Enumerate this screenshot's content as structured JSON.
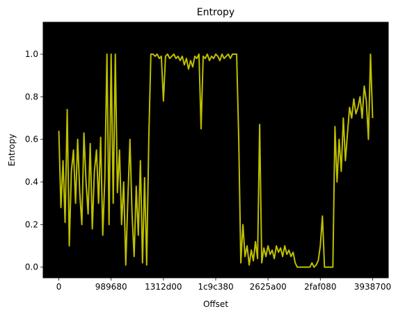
{
  "chart_data": {
    "type": "line",
    "title": "Entropy",
    "xlabel": "Offset",
    "ylabel": "Entropy",
    "background": "#000000",
    "xlim": [
      -3000000,
      63000000
    ],
    "ylim": [
      -0.05,
      1.15
    ],
    "xticks": [
      {
        "value": 0,
        "label": "0"
      },
      {
        "value": 10000000,
        "label": "989680"
      },
      {
        "value": 20000000,
        "label": "1312d00"
      },
      {
        "value": 30000000,
        "label": "1c9c380"
      },
      {
        "value": 40000000,
        "label": "2625a00"
      },
      {
        "value": 50000000,
        "label": "2faf080"
      },
      {
        "value": 60000000,
        "label": "3938700"
      }
    ],
    "yticks": [
      {
        "value": 0,
        "label": "0.0"
      },
      {
        "value": 0.2,
        "label": "0.2"
      },
      {
        "value": 0.4,
        "label": "0.4"
      },
      {
        "value": 0.6,
        "label": "0.6"
      },
      {
        "value": 0.8,
        "label": "0.8"
      },
      {
        "value": 1,
        "label": "1.0"
      }
    ],
    "x": [
      0,
      400000,
      800000,
      1200000,
      1600000,
      2000000,
      2400000,
      2800000,
      3200000,
      3600000,
      4000000,
      4400000,
      4800000,
      5200000,
      5600000,
      6000000,
      6400000,
      6800000,
      7200000,
      7600000,
      8000000,
      8400000,
      8800000,
      9200000,
      9600000,
      10000000,
      10400000,
      10800000,
      11200000,
      11600000,
      12000000,
      12400000,
      12800000,
      13200000,
      13600000,
      14000000,
      14400000,
      14800000,
      15200000,
      15600000,
      16000000,
      16400000,
      16800000,
      17200000,
      17600000,
      18000000,
      18400000,
      18800000,
      19200000,
      19600000,
      20000000,
      20400000,
      20800000,
      21200000,
      21600000,
      22000000,
      22400000,
      22800000,
      23200000,
      23600000,
      24000000,
      24400000,
      24800000,
      25200000,
      25600000,
      26000000,
      26400000,
      26800000,
      27200000,
      27600000,
      28000000,
      28400000,
      28800000,
      29200000,
      29600000,
      30000000,
      30400000,
      30800000,
      31200000,
      31600000,
      32000000,
      32400000,
      32800000,
      33200000,
      33600000,
      34000000,
      34400000,
      34800000,
      35200000,
      35600000,
      36000000,
      36400000,
      36800000,
      37200000,
      37600000,
      38000000,
      38400000,
      38800000,
      39200000,
      39600000,
      40000000,
      40400000,
      40800000,
      41200000,
      41600000,
      42000000,
      42400000,
      42800000,
      43200000,
      43600000,
      44000000,
      44400000,
      44800000,
      45200000,
      45600000,
      46000000,
      46400000,
      46800000,
      47200000,
      47600000,
      48000000,
      48400000,
      48800000,
      49200000,
      49600000,
      50000000,
      50400000,
      50800000,
      51200000,
      51600000,
      52000000,
      52400000,
      52800000,
      53200000,
      53600000,
      54000000,
      54400000,
      54800000,
      55200000,
      55600000,
      56000000,
      56400000,
      56800000,
      57200000,
      57600000,
      58000000,
      58400000,
      58800000,
      59200000,
      59600000,
      60000000
    ],
    "series": [
      {
        "name": "Entropy",
        "color": "#bfbf00",
        "values": [
          0.64,
          0.28,
          0.5,
          0.21,
          0.74,
          0.1,
          0.45,
          0.55,
          0.3,
          0.6,
          0.35,
          0.2,
          0.63,
          0.4,
          0.25,
          0.58,
          0.18,
          0.45,
          0.55,
          0.3,
          0.61,
          0.15,
          0.42,
          1.0,
          0.2,
          1.0,
          0.3,
          1.0,
          0.35,
          0.55,
          0.2,
          0.4,
          0.01,
          0.32,
          0.6,
          0.25,
          0.05,
          0.38,
          0.15,
          0.5,
          0.02,
          0.42,
          0.01,
          0.6,
          1.0,
          1.0,
          0.99,
          1.0,
          0.98,
          0.99,
          0.78,
          0.99,
          1.0,
          0.98,
          0.99,
          1.0,
          0.98,
          0.99,
          0.97,
          0.99,
          0.95,
          0.98,
          0.93,
          0.97,
          0.94,
          0.99,
          0.98,
          1.0,
          0.65,
          0.99,
          0.98,
          1.0,
          0.97,
          0.99,
          0.98,
          1.0,
          0.99,
          0.97,
          1.0,
          0.98,
          0.99,
          1.0,
          0.98,
          1.0,
          1.0,
          1.0,
          0.6,
          0.02,
          0.2,
          0.05,
          0.1,
          0.01,
          0.08,
          0.03,
          0.12,
          0.04,
          0.67,
          0.02,
          0.09,
          0.05,
          0.1,
          0.06,
          0.08,
          0.04,
          0.1,
          0.07,
          0.09,
          0.05,
          0.1,
          0.06,
          0.08,
          0.05,
          0.07,
          0.02,
          0.0,
          0.0,
          0.0,
          0.0,
          0.0,
          0.0,
          0.0,
          0.02,
          0.0,
          0.01,
          0.03,
          0.1,
          0.24,
          0.0,
          0.0,
          0.0,
          0.0,
          0.0,
          0.66,
          0.4,
          0.6,
          0.45,
          0.7,
          0.5,
          0.63,
          0.75,
          0.7,
          0.79,
          0.72,
          0.75,
          0.8,
          0.7,
          0.85,
          0.78,
          0.6,
          1.0,
          0.7
        ]
      }
    ]
  }
}
